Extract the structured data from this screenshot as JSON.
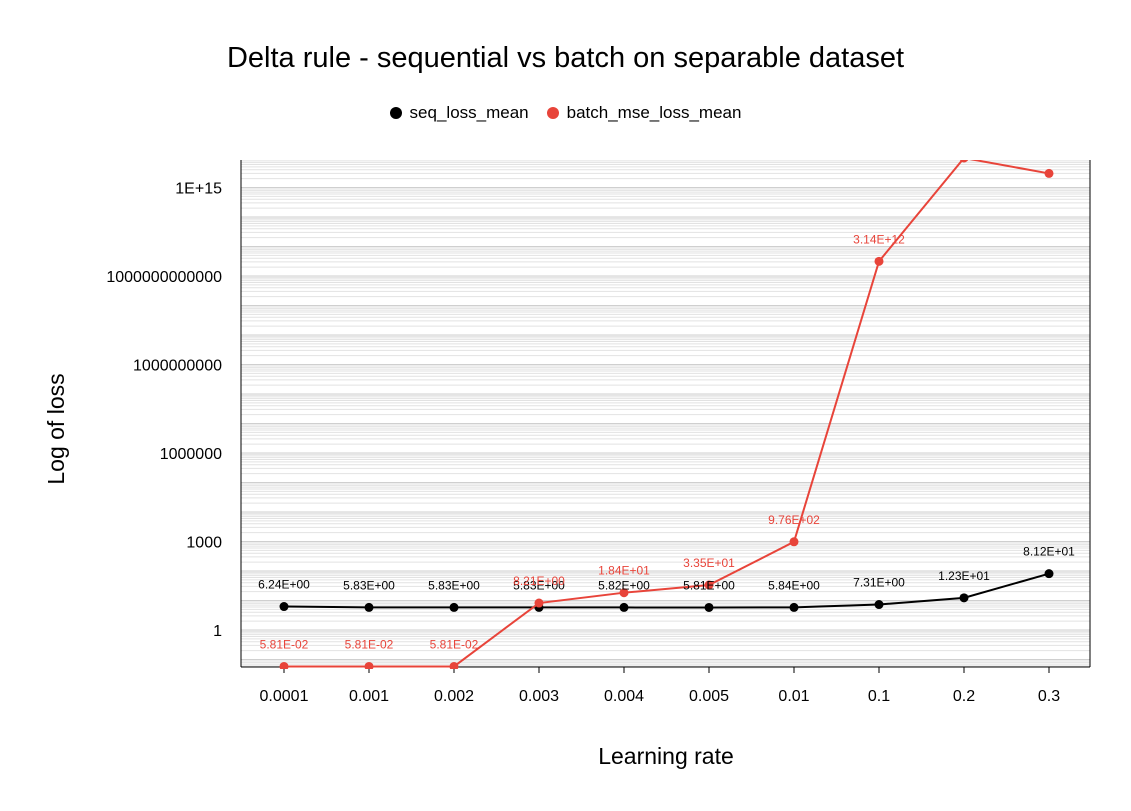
{
  "chart_data": {
    "type": "line",
    "title": "Delta rule - sequential vs batch on separable dataset",
    "xlabel": "Learning rate",
    "ylabel": "Log of loss",
    "y_scale": "log",
    "categories": [
      "0.0001",
      "0.001",
      "0.002",
      "0.003",
      "0.004",
      "0.005",
      "0.01",
      "0.1",
      "0.2",
      "0.3"
    ],
    "y_ticks": [
      {
        "value": 1,
        "label": "1"
      },
      {
        "value": 1000,
        "label": "1000"
      },
      {
        "value": 1000000,
        "label": "1000000"
      },
      {
        "value": 1000000000,
        "label": "1000000000"
      },
      {
        "value": 1000000000000,
        "label": "1000000000000"
      },
      {
        "value": 1000000000000000.0,
        "label": "1E+15"
      }
    ],
    "ylim": [
      0.0581,
      1e+16
    ],
    "grid": "horizontal",
    "legend_position": "top-center",
    "series": [
      {
        "name": "seq_loss_mean",
        "color": "#000000",
        "values": [
          6.24,
          5.83,
          5.83,
          5.83,
          5.82,
          5.81,
          5.84,
          7.31,
          12.3,
          81.2
        ],
        "labels": [
          "6.24E+00",
          "5.83E+00",
          "5.83E+00",
          "5.83E+00",
          "5.82E+00",
          "5.81E+00",
          "5.84E+00",
          "7.31E+00",
          "1.23E+01",
          "8.12E+01"
        ]
      },
      {
        "name": "batch_mse_loss_mean",
        "color": "#e8443a",
        "values": [
          0.0581,
          0.0581,
          0.0581,
          8.21,
          18.4,
          33.5,
          976,
          3140000000000,
          10000000000000000,
          3000000000000000
        ],
        "labels": [
          "5.81E-02",
          "5.81E-02",
          "5.81E-02",
          "8.21E+00",
          "1.84E+01",
          "3.35E+01",
          "9.76E+02",
          "3.14E+12",
          "",
          ""
        ]
      }
    ]
  }
}
